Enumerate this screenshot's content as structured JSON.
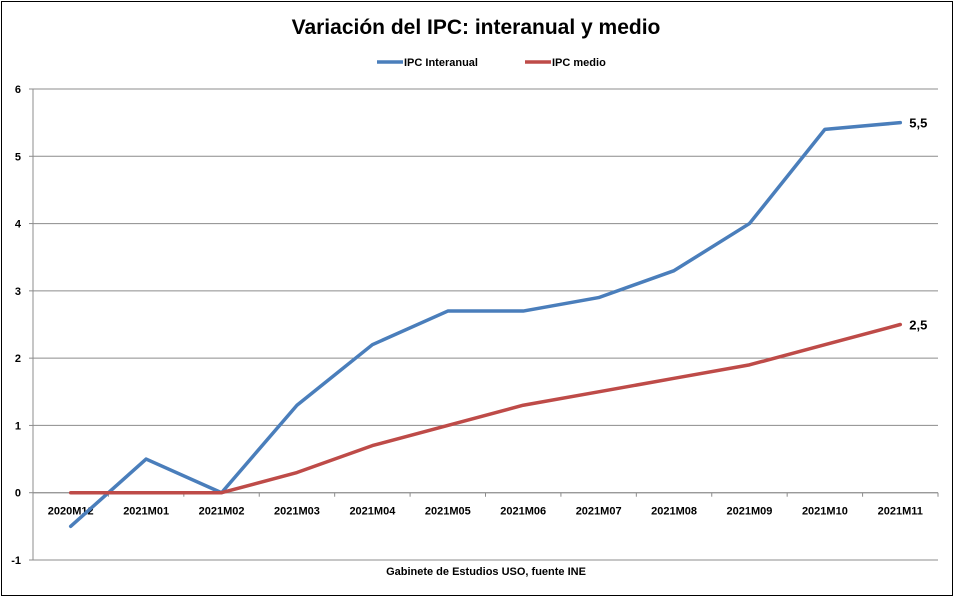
{
  "chart_data": {
    "type": "line",
    "title": "Variación del IPC: interanual y medio",
    "categories": [
      "2020M12",
      "2021M01",
      "2021M02",
      "2021M03",
      "2021M04",
      "2021M05",
      "2021M06",
      "2021M07",
      "2021M08",
      "2021M09",
      "2021M10",
      "2021M11"
    ],
    "series": [
      {
        "name": "IPC Interanual",
        "color": "#4a7ebb",
        "values": [
          -0.5,
          0.5,
          0.0,
          1.3,
          2.2,
          2.7,
          2.7,
          2.9,
          3.3,
          4.0,
          5.4,
          5.5
        ],
        "end_label": "5,5"
      },
      {
        "name": "IPC medio",
        "color": "#be4b48",
        "values": [
          0.0,
          0.0,
          0.0,
          0.3,
          0.7,
          1.0,
          1.3,
          1.5,
          1.7,
          1.9,
          2.2,
          2.5
        ],
        "end_label": "2,5"
      }
    ],
    "ylim": [
      -1,
      6
    ],
    "yticks": [
      "-1",
      "0",
      "1",
      "2",
      "3",
      "4",
      "5",
      "6"
    ],
    "grid": true,
    "legend_position": "top",
    "source": "Gabinete de Estudios USO, fuente INE"
  }
}
